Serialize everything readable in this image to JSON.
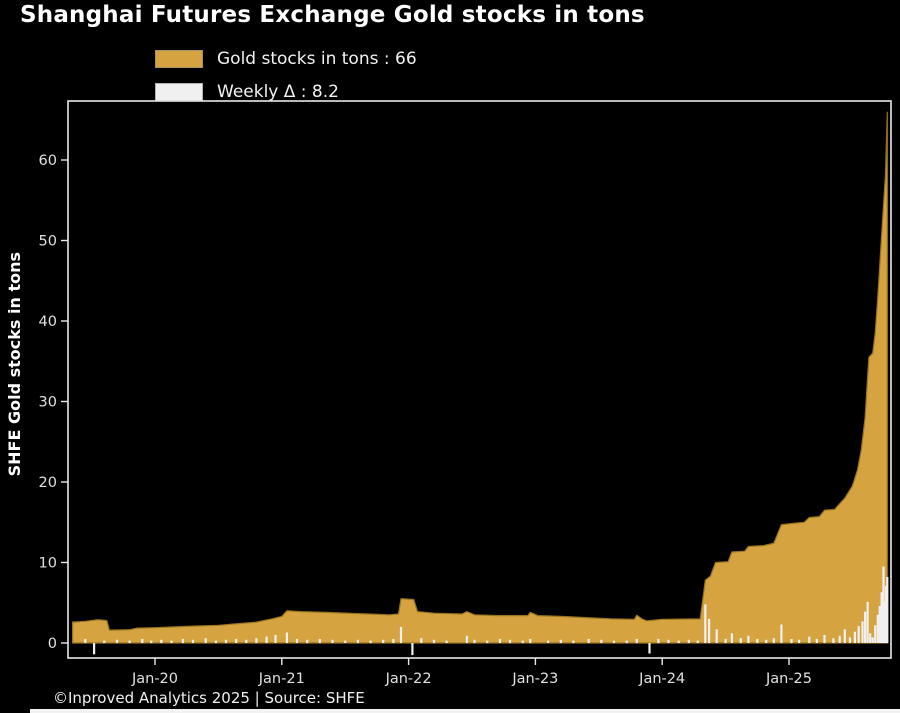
{
  "title": "Shanghai Futures Exchange Gold stocks in tons",
  "footer": "©Inproved Analytics 2025 | Source: SHFE",
  "legend": {
    "gold_label": "Gold stocks in tons : 66",
    "delta_label": "Weekly Δ : 8.2"
  },
  "colors": {
    "background": "#000000",
    "gold": "#D5A440",
    "gold_edge": "#97741F",
    "delta_bar": "#F0F0F0",
    "plot_border": "#E8E8E8",
    "tick_label": "#E0E0E0",
    "text": "#FFFFFF"
  },
  "chart_data": {
    "type": "area",
    "title": "Shanghai Futures Exchange Gold stocks in tons",
    "xlabel": "",
    "ylabel": "SHFE Gold stocks in tons",
    "ylim": [
      -1.9,
      67.3
    ],
    "grid": false,
    "legend_position": "top-left",
    "y_ticks": [
      0,
      10,
      20,
      30,
      40,
      50,
      60
    ],
    "x_ticks": [
      {
        "label": "Jan-20",
        "year": 2020
      },
      {
        "label": "Jan-21",
        "year": 2021
      },
      {
        "label": "Jan-22",
        "year": 2022
      },
      {
        "label": "Jan-23",
        "year": 2023
      },
      {
        "label": "Jan-24",
        "year": 2024
      },
      {
        "label": "Jan-25",
        "year": 2025
      }
    ],
    "series": [
      {
        "name": "Gold stocks in tons",
        "type": "area",
        "current_value": 66,
        "color": "#D5A440",
        "edge_color": "#97741F",
        "points": [
          [
            2019.35,
            2.6
          ],
          [
            2019.45,
            2.7
          ],
          [
            2019.55,
            2.9
          ],
          [
            2019.62,
            2.8
          ],
          [
            2019.64,
            1.6
          ],
          [
            2019.8,
            1.65
          ],
          [
            2019.86,
            1.85
          ],
          [
            2020.0,
            1.9
          ],
          [
            2020.15,
            2.0
          ],
          [
            2020.3,
            2.1
          ],
          [
            2020.5,
            2.2
          ],
          [
            2020.65,
            2.4
          ],
          [
            2020.8,
            2.6
          ],
          [
            2020.92,
            3.0
          ],
          [
            2021.0,
            3.3
          ],
          [
            2021.04,
            4.0
          ],
          [
            2021.15,
            3.9
          ],
          [
            2021.35,
            3.8
          ],
          [
            2021.6,
            3.65
          ],
          [
            2021.85,
            3.5
          ],
          [
            2021.92,
            3.6
          ],
          [
            2021.94,
            5.5
          ],
          [
            2022.04,
            5.4
          ],
          [
            2022.07,
            3.9
          ],
          [
            2022.2,
            3.7
          ],
          [
            2022.42,
            3.6
          ],
          [
            2022.46,
            3.9
          ],
          [
            2022.52,
            3.5
          ],
          [
            2022.7,
            3.4
          ],
          [
            2022.94,
            3.4
          ],
          [
            2022.96,
            3.8
          ],
          [
            2023.02,
            3.4
          ],
          [
            2023.2,
            3.3
          ],
          [
            2023.4,
            3.15
          ],
          [
            2023.6,
            3.0
          ],
          [
            2023.78,
            2.95
          ],
          [
            2023.8,
            3.45
          ],
          [
            2023.84,
            3.0
          ],
          [
            2023.88,
            2.75
          ],
          [
            2024.0,
            2.95
          ],
          [
            2024.3,
            3.0
          ],
          [
            2024.34,
            7.8
          ],
          [
            2024.38,
            8.3
          ],
          [
            2024.42,
            10.0
          ],
          [
            2024.52,
            10.1
          ],
          [
            2024.55,
            11.3
          ],
          [
            2024.65,
            11.4
          ],
          [
            2024.68,
            12.0
          ],
          [
            2024.8,
            12.1
          ],
          [
            2024.88,
            12.4
          ],
          [
            2024.94,
            14.7
          ],
          [
            2025.05,
            14.9
          ],
          [
            2025.12,
            15.0
          ],
          [
            2025.16,
            15.6
          ],
          [
            2025.24,
            15.7
          ],
          [
            2025.28,
            16.5
          ],
          [
            2025.36,
            16.6
          ],
          [
            2025.4,
            17.3
          ],
          [
            2025.44,
            18.0
          ],
          [
            2025.5,
            19.5
          ],
          [
            2025.54,
            21.5
          ],
          [
            2025.57,
            24.0
          ],
          [
            2025.6,
            28.0
          ],
          [
            2025.62,
            33.0
          ],
          [
            2025.63,
            35.5
          ],
          [
            2025.66,
            36.0
          ],
          [
            2025.68,
            38.5
          ],
          [
            2025.7,
            43.0
          ],
          [
            2025.72,
            48.0
          ],
          [
            2025.74,
            53.0
          ],
          [
            2025.76,
            58.0
          ],
          [
            2025.775,
            66.0
          ]
        ]
      },
      {
        "name": "Weekly Δ",
        "type": "bar",
        "current_value": 8.2,
        "color": "#F0F0F0",
        "points": [
          [
            2019.45,
            0.5
          ],
          [
            2019.52,
            -1.4
          ],
          [
            2019.6,
            0.3
          ],
          [
            2019.7,
            0.4
          ],
          [
            2019.8,
            0.3
          ],
          [
            2019.9,
            0.5
          ],
          [
            2019.97,
            0.3
          ],
          [
            2020.05,
            0.4
          ],
          [
            2020.13,
            0.3
          ],
          [
            2020.22,
            0.5
          ],
          [
            2020.3,
            0.4
          ],
          [
            2020.4,
            0.6
          ],
          [
            2020.48,
            0.3
          ],
          [
            2020.56,
            0.4
          ],
          [
            2020.64,
            0.5
          ],
          [
            2020.72,
            0.4
          ],
          [
            2020.8,
            0.6
          ],
          [
            2020.88,
            0.8
          ],
          [
            2020.95,
            1.0
          ],
          [
            2021.04,
            1.3
          ],
          [
            2021.12,
            0.5
          ],
          [
            2021.2,
            0.4
          ],
          [
            2021.3,
            0.5
          ],
          [
            2021.4,
            0.4
          ],
          [
            2021.5,
            0.3
          ],
          [
            2021.6,
            0.4
          ],
          [
            2021.7,
            0.3
          ],
          [
            2021.8,
            0.4
          ],
          [
            2021.88,
            0.5
          ],
          [
            2021.94,
            2.0
          ],
          [
            2022.03,
            -1.5
          ],
          [
            2022.1,
            0.6
          ],
          [
            2022.2,
            0.4
          ],
          [
            2022.3,
            0.3
          ],
          [
            2022.46,
            0.9
          ],
          [
            2022.52,
            0.4
          ],
          [
            2022.62,
            0.3
          ],
          [
            2022.72,
            0.5
          ],
          [
            2022.8,
            0.4
          ],
          [
            2022.9,
            0.3
          ],
          [
            2022.96,
            0.5
          ],
          [
            2023.1,
            0.3
          ],
          [
            2023.2,
            0.4
          ],
          [
            2023.3,
            0.3
          ],
          [
            2023.42,
            0.5
          ],
          [
            2023.52,
            0.4
          ],
          [
            2023.62,
            0.3
          ],
          [
            2023.72,
            0.3
          ],
          [
            2023.8,
            0.5
          ],
          [
            2023.9,
            -1.3
          ],
          [
            2023.97,
            0.5
          ],
          [
            2024.05,
            0.4
          ],
          [
            2024.13,
            0.3
          ],
          [
            2024.21,
            0.4
          ],
          [
            2024.28,
            0.3
          ],
          [
            2024.34,
            4.8
          ],
          [
            2024.37,
            3.0
          ],
          [
            2024.43,
            1.7
          ],
          [
            2024.5,
            0.5
          ],
          [
            2024.55,
            1.2
          ],
          [
            2024.62,
            0.6
          ],
          [
            2024.68,
            0.9
          ],
          [
            2024.75,
            0.5
          ],
          [
            2024.82,
            0.4
          ],
          [
            2024.88,
            0.6
          ],
          [
            2024.94,
            2.3
          ],
          [
            2025.02,
            0.5
          ],
          [
            2025.08,
            0.4
          ],
          [
            2025.16,
            0.8
          ],
          [
            2025.22,
            0.5
          ],
          [
            2025.28,
            1.0
          ],
          [
            2025.35,
            0.6
          ],
          [
            2025.4,
            0.9
          ],
          [
            2025.44,
            1.7
          ],
          [
            2025.48,
            0.7
          ],
          [
            2025.52,
            1.4
          ],
          [
            2025.55,
            2.1
          ],
          [
            2025.58,
            2.7
          ],
          [
            2025.6,
            3.9
          ],
          [
            2025.62,
            5.1
          ],
          [
            2025.64,
            1.2
          ],
          [
            2025.66,
            0.7
          ],
          [
            2025.68,
            2.2
          ],
          [
            2025.7,
            3.5
          ],
          [
            2025.715,
            4.6
          ],
          [
            2025.73,
            6.3
          ],
          [
            2025.745,
            9.5
          ],
          [
            2025.755,
            5.2
          ],
          [
            2025.765,
            7.1
          ],
          [
            2025.775,
            8.2
          ]
        ]
      }
    ]
  }
}
